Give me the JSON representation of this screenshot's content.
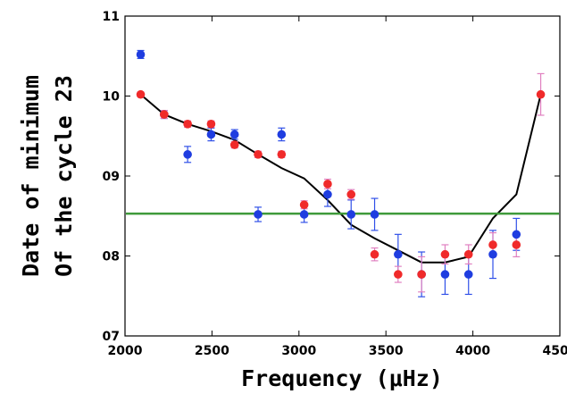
{
  "chart_data": {
    "type": "scatter",
    "title": "",
    "xlabel": "Frequency (μHz)",
    "ylabel_lines": [
      "Of the cycle 23",
      "Date of minimum"
    ],
    "xlim": [
      2000,
      4500
    ],
    "ylim": [
      7,
      11
    ],
    "xticks": [
      2000,
      2500,
      3000,
      3500,
      4000,
      4500
    ],
    "yticks": [
      7,
      8,
      9,
      10,
      11
    ],
    "ytick_labels": [
      "07",
      "08",
      "09",
      "10",
      "11"
    ],
    "grid": false,
    "legend": "none",
    "series": [
      {
        "color": "#1f3de0",
        "errcolor": "#3050e8",
        "kind": "points",
        "x": [
          2090,
          2225,
          2360,
          2495,
          2630,
          2765,
          2900,
          3030,
          3165,
          3300,
          3435,
          3570,
          3705,
          3840,
          3975,
          4115,
          4250
        ],
        "y": [
          10.52,
          9.77,
          9.27,
          9.52,
          9.52,
          8.52,
          9.52,
          8.52,
          8.77,
          8.52,
          8.52,
          8.02,
          7.77,
          7.77,
          7.77,
          8.02,
          8.27
        ],
        "err": [
          0.05,
          0.05,
          0.1,
          0.08,
          0.06,
          0.09,
          0.08,
          0.1,
          0.15,
          0.18,
          0.2,
          0.25,
          0.28,
          0.25,
          0.25,
          0.3,
          0.2
        ]
      },
      {
        "color": "#f02a2a",
        "errcolor": "#e080c0",
        "kind": "points",
        "x": [
          2090,
          2225,
          2360,
          2495,
          2630,
          2765,
          2900,
          3030,
          3165,
          3300,
          3435,
          3570,
          3705,
          3840,
          3975,
          4115,
          4250,
          4390
        ],
        "y": [
          10.02,
          9.77,
          9.65,
          9.65,
          9.39,
          9.27,
          9.27,
          8.64,
          8.9,
          8.77,
          8.02,
          7.77,
          7.77,
          8.02,
          8.02,
          8.14,
          8.14,
          10.02
        ],
        "err": [
          0.03,
          0.05,
          0.04,
          0.04,
          0.04,
          0.04,
          0.04,
          0.05,
          0.06,
          0.06,
          0.08,
          0.1,
          0.22,
          0.12,
          0.12,
          0.15,
          0.15,
          0.26
        ]
      },
      {
        "color": "#000000",
        "kind": "line",
        "x": [
          2090,
          2225,
          2360,
          2495,
          2630,
          2765,
          2900,
          3030,
          3165,
          3300,
          3435,
          3570,
          3705,
          3840,
          3975,
          4115,
          4250,
          4390
        ],
        "y": [
          10.02,
          9.77,
          9.65,
          9.56,
          9.45,
          9.27,
          9.1,
          8.97,
          8.7,
          8.39,
          8.22,
          8.07,
          7.92,
          7.92,
          7.99,
          8.47,
          8.77,
          10.02
        ]
      },
      {
        "color": "#3f9a3a",
        "kind": "hline",
        "y": 8.53
      }
    ]
  }
}
